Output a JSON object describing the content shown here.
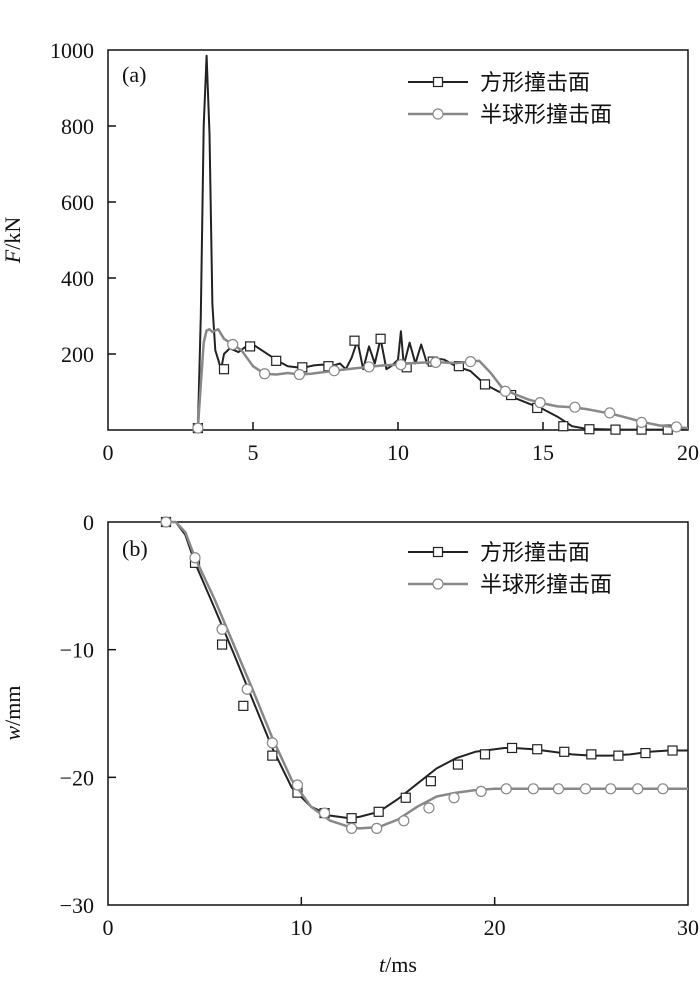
{
  "chart_data": [
    {
      "type": "line",
      "panel_label": "(a)",
      "ylabel_var": "F",
      "ylabel_unit": "/kN",
      "xlim": [
        0,
        20
      ],
      "ylim": [
        0,
        1000
      ],
      "x_ticks": [
        "0",
        "5",
        "10",
        "15",
        "20"
      ],
      "y_ticks": [
        "200",
        "400",
        "600",
        "800",
        "1000"
      ],
      "legend_position": "top-right",
      "grid": false,
      "series": [
        {
          "name": "方形撞击面",
          "color": "#222222",
          "marker": "square",
          "x": [
            3.1,
            3.2,
            3.3,
            3.4,
            3.5,
            3.6,
            3.7,
            3.8,
            3.9,
            4.0,
            4.2,
            4.5,
            4.8,
            5.0,
            5.3,
            5.6,
            5.9,
            6.2,
            6.5,
            6.8,
            7.1,
            7.4,
            7.7,
            8.0,
            8.2,
            8.4,
            8.6,
            8.8,
            9.0,
            9.2,
            9.4,
            9.6,
            9.8,
            10.0,
            10.1,
            10.2,
            10.4,
            10.6,
            10.8,
            11.0,
            11.2,
            11.6,
            12.0,
            12.5,
            13.0,
            13.5,
            14.0,
            14.5,
            15.0,
            15.5,
            16.0,
            16.5,
            17.0,
            17.5,
            18.0,
            18.5,
            19.0,
            19.5,
            20.0
          ],
          "y": [
            5,
            300,
            800,
            985,
            780,
            330,
            210,
            185,
            160,
            200,
            215,
            205,
            222,
            225,
            210,
            195,
            180,
            168,
            165,
            165,
            170,
            172,
            168,
            175,
            160,
            190,
            235,
            160,
            220,
            175,
            240,
            160,
            170,
            185,
            260,
            170,
            230,
            175,
            225,
            175,
            190,
            185,
            168,
            155,
            120,
            100,
            85,
            70,
            55,
            35,
            10,
            3,
            2,
            1,
            1,
            1,
            1,
            1,
            1
          ],
          "marker_x": [
            3.1,
            4.0,
            4.9,
            5.8,
            6.7,
            7.6,
            8.5,
            9.4,
            10.3,
            11.2,
            12.1,
            13.0,
            13.9,
            14.8,
            15.7,
            16.6,
            17.5,
            18.4,
            19.3
          ],
          "marker_y": [
            5,
            160,
            220,
            182,
            165,
            168,
            235,
            240,
            165,
            180,
            168,
            120,
            92,
            58,
            10,
            2,
            1,
            1,
            1
          ]
        },
        {
          "name": "半球形撞击面",
          "color": "#888888",
          "marker": "circle",
          "x": [
            3.1,
            3.2,
            3.3,
            3.4,
            3.5,
            3.6,
            3.7,
            3.8,
            4.0,
            4.3,
            4.6,
            5.0,
            5.4,
            5.8,
            6.2,
            6.6,
            7.0,
            7.5,
            8.0,
            8.5,
            9.0,
            9.5,
            10.0,
            10.5,
            11.0,
            11.5,
            12.0,
            12.5,
            12.8,
            13.2,
            13.6,
            14.0,
            14.5,
            15.0,
            15.5,
            16.0,
            16.5,
            17.0,
            17.5,
            18.0,
            18.5,
            19.0,
            19.5,
            20.0
          ],
          "y": [
            5,
            120,
            230,
            262,
            265,
            258,
            262,
            265,
            240,
            225,
            210,
            168,
            148,
            146,
            150,
            146,
            148,
            153,
            158,
            162,
            166,
            170,
            172,
            176,
            178,
            178,
            176,
            180,
            182,
            150,
            110,
            95,
            80,
            70,
            62,
            60,
            55,
            48,
            40,
            30,
            20,
            12,
            8,
            5
          ],
          "marker_x": [
            3.1,
            4.3,
            5.4,
            6.6,
            7.8,
            9.0,
            10.1,
            11.3,
            12.5,
            13.7,
            14.9,
            16.1,
            17.3,
            18.4,
            19.6
          ],
          "marker_y": [
            5,
            225,
            148,
            146,
            156,
            166,
            172,
            178,
            180,
            102,
            72,
            60,
            45,
            20,
            8
          ]
        }
      ]
    },
    {
      "type": "line",
      "panel_label": "(b)",
      "ylabel_var": "w",
      "ylabel_unit": "/mm",
      "xlabel_var": "t",
      "xlabel_unit": "/ms",
      "xlim": [
        0,
        30
      ],
      "ylim": [
        -30,
        0
      ],
      "x_ticks": [
        "0",
        "10",
        "20",
        "30"
      ],
      "y_ticks": [
        "0",
        "−10",
        "−20",
        "−30"
      ],
      "legend_position": "top-right",
      "grid": false,
      "series": [
        {
          "name": "方形撞击面",
          "color": "#222222",
          "marker": "square",
          "x": [
            3.0,
            3.5,
            4.0,
            4.5,
            5.5,
            6.5,
            7.5,
            8.5,
            9.5,
            10.5,
            11.5,
            12.5,
            13.0,
            14.0,
            15.0,
            16.0,
            17.0,
            18.0,
            19.0,
            20.0,
            20.5,
            21.0,
            22.0,
            23.0,
            24.0,
            25.0,
            26.0,
            27.0,
            28.0,
            29.0,
            30.0
          ],
          "y": [
            0.0,
            0.0,
            -1.0,
            -3.2,
            -6.7,
            -10.3,
            -14.0,
            -17.7,
            -20.8,
            -22.3,
            -23.0,
            -23.2,
            -23.1,
            -22.7,
            -21.7,
            -20.5,
            -19.3,
            -18.5,
            -18.0,
            -17.8,
            -17.7,
            -17.7,
            -17.8,
            -18.0,
            -18.2,
            -18.3,
            -18.3,
            -18.2,
            -18.0,
            -17.9,
            -17.9
          ],
          "marker_x": [
            3.0,
            4.5,
            5.9,
            7.0,
            8.5,
            9.8,
            11.2,
            12.6,
            14.0,
            15.4,
            16.7,
            18.1,
            19.5,
            20.9,
            22.2,
            23.6,
            25.0,
            26.4,
            27.8,
            29.2
          ],
          "marker_y": [
            0.0,
            -3.2,
            -9.6,
            -14.4,
            -18.3,
            -21.2,
            -22.8,
            -23.2,
            -22.7,
            -21.6,
            -20.3,
            -19.0,
            -18.2,
            -17.7,
            -17.8,
            -18.0,
            -18.2,
            -18.3,
            -18.1,
            -17.9
          ]
        },
        {
          "name": "半球形撞击面",
          "color": "#888888",
          "marker": "circle",
          "x": [
            3.0,
            3.5,
            4.0,
            4.5,
            5.5,
            6.5,
            7.5,
            8.5,
            9.5,
            10.5,
            11.5,
            12.5,
            13.0,
            14.0,
            15.0,
            16.0,
            17.0,
            18.0,
            19.0,
            20.0,
            21.0,
            22.0,
            23.0,
            24.0,
            25.0,
            26.0,
            27.0,
            28.0,
            29.0,
            30.0
          ],
          "y": [
            0.0,
            0.0,
            -0.8,
            -2.8,
            -6.0,
            -9.6,
            -13.2,
            -16.9,
            -20.2,
            -22.3,
            -23.4,
            -23.9,
            -24.0,
            -23.9,
            -23.3,
            -22.3,
            -21.5,
            -21.2,
            -21.0,
            -20.9,
            -20.9,
            -20.9,
            -20.9,
            -20.9,
            -20.9,
            -20.9,
            -20.9,
            -20.9,
            -20.9,
            -20.9
          ],
          "marker_x": [
            3.0,
            4.5,
            5.9,
            7.2,
            8.5,
            9.8,
            11.2,
            12.6,
            13.9,
            15.3,
            16.6,
            17.9,
            19.3,
            20.6,
            22.0,
            23.3,
            24.7,
            26.0,
            27.4,
            28.7
          ],
          "marker_y": [
            0.0,
            -2.8,
            -8.4,
            -13.1,
            -17.3,
            -20.6,
            -22.8,
            -24.0,
            -24.0,
            -23.4,
            -22.4,
            -21.6,
            -21.1,
            -20.9,
            -20.9,
            -20.9,
            -20.9,
            -20.9,
            -20.9,
            -20.9
          ]
        }
      ]
    }
  ]
}
